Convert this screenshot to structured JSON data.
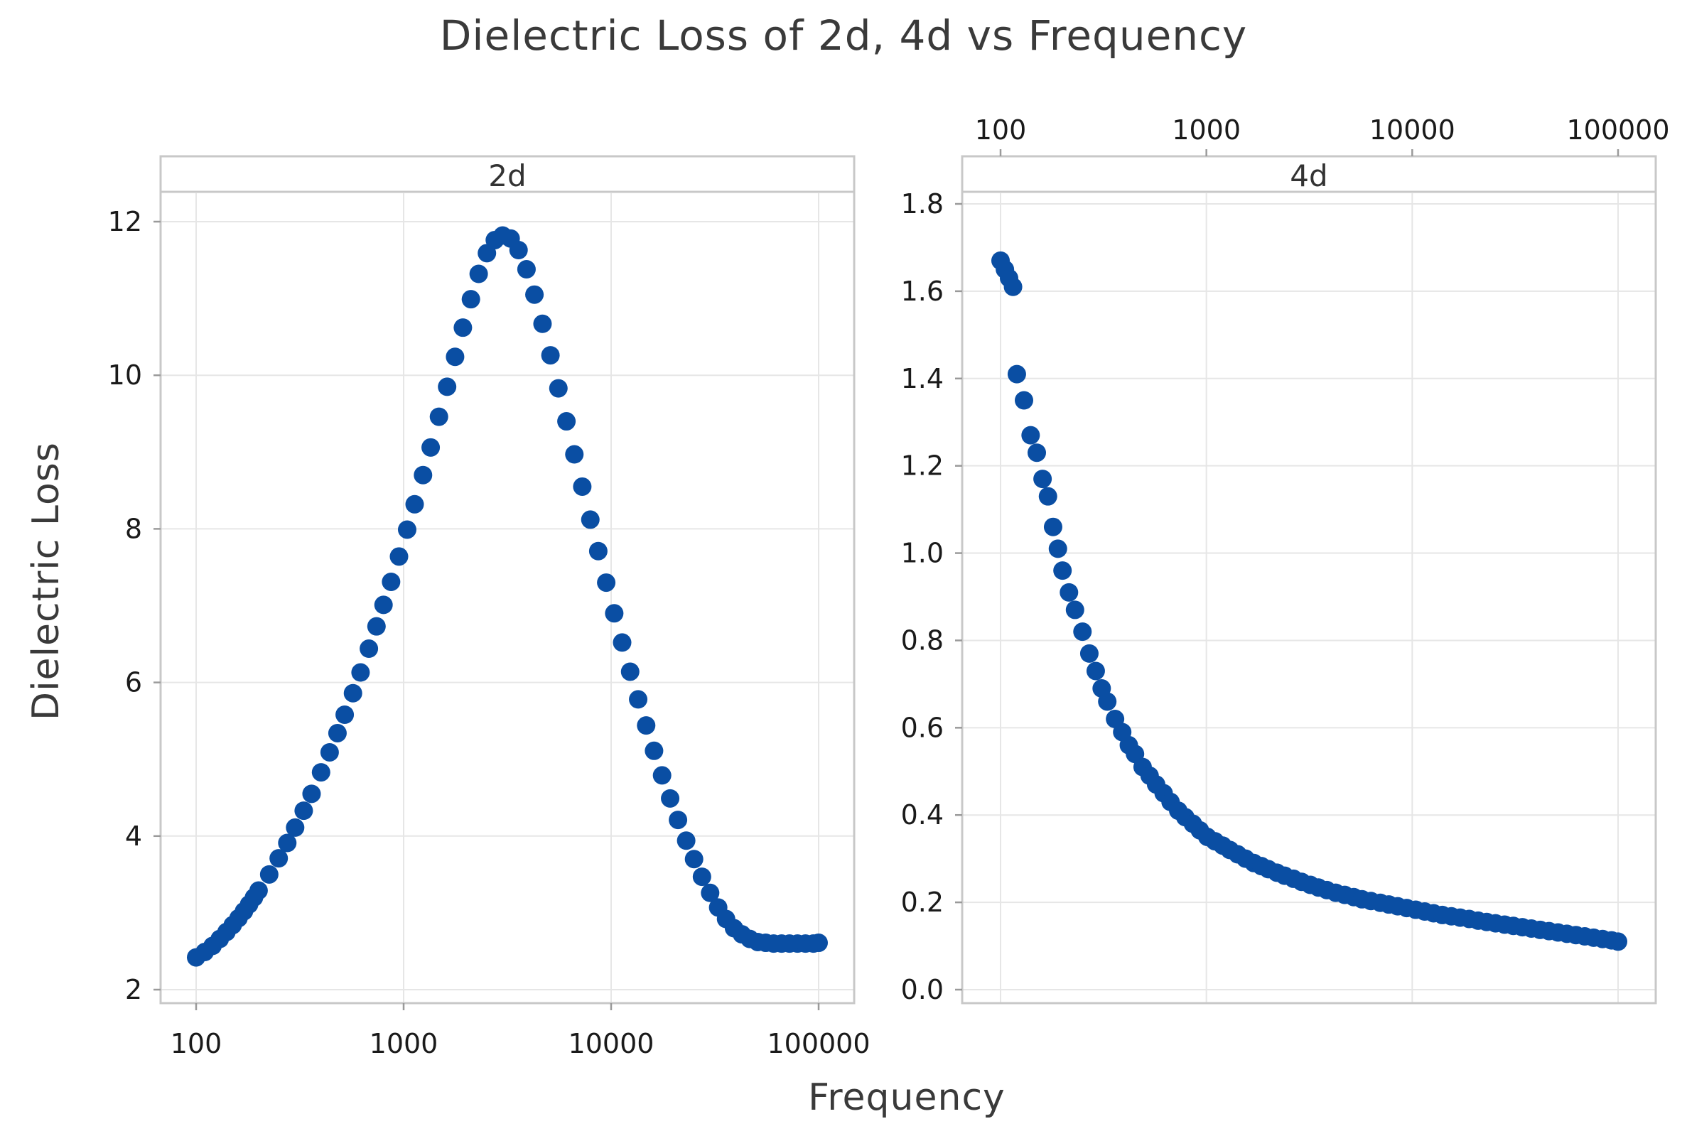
{
  "chart_data": {
    "type": "scatter",
    "title": "Dielectric Loss of 2d, 4d vs Frequency",
    "xlabel": "Frequency",
    "ylabel": "Dielectric Loss",
    "x_scale": "log",
    "marker_color": "#0a4ea3",
    "panels": [
      {
        "name": "2d",
        "xlim": [
          100,
          100000
        ],
        "ylim": [
          2,
          12
        ],
        "x_ticks": [
          "100",
          "1000",
          "10000",
          "100000"
        ],
        "y_ticks": [
          "2",
          "4",
          "6",
          "8",
          "10",
          "12"
        ],
        "x_ticks_position": "bottom",
        "series": [
          {
            "name": "2d",
            "x": [
              100,
              110,
              120,
              130,
              140,
              150,
              160,
              170,
              180,
              190,
              200,
              225,
              250,
              275,
              300,
              330,
              360,
              400,
              440,
              480,
              520,
              570,
              620,
              680,
              740,
              800,
              870,
              950,
              1040,
              1130,
              1240,
              1350,
              1480,
              1620,
              1770,
              1930,
              2110,
              2300,
              2520,
              2750,
              3000,
              3280,
              3580,
              3910,
              4270,
              4670,
              5100,
              5570,
              6090,
              6650,
              7260,
              7940,
              8670,
              9470,
              10350,
              11300,
              12350,
              13500,
              14750,
              16100,
              17600,
              19250,
              21000,
              23000,
              25100,
              27400,
              30000,
              32800,
              35800,
              39100,
              42700,
              46600,
              50900,
              55600,
              60700,
              66300,
              72400,
              79100,
              86400,
              94400,
              100000
            ],
            "y": [
              2.42,
              2.49,
              2.57,
              2.66,
              2.75,
              2.84,
              2.93,
              3.02,
              3.11,
              3.2,
              3.29,
              3.5,
              3.71,
              3.91,
              4.11,
              4.33,
              4.55,
              4.83,
              5.09,
              5.34,
              5.58,
              5.86,
              6.13,
              6.44,
              6.73,
              7.01,
              7.31,
              7.64,
              7.99,
              8.32,
              8.7,
              9.06,
              9.46,
              9.85,
              10.24,
              10.62,
              10.99,
              11.32,
              11.59,
              11.76,
              11.82,
              11.78,
              11.63,
              11.38,
              11.05,
              10.67,
              10.26,
              9.83,
              9.4,
              8.97,
              8.55,
              8.12,
              7.71,
              7.3,
              6.9,
              6.52,
              6.14,
              5.78,
              5.44,
              5.11,
              4.79,
              4.49,
              4.21,
              3.94,
              3.7,
              3.47,
              3.26,
              3.07,
              2.92,
              2.8,
              2.72,
              2.66,
              2.62,
              2.61,
              2.6,
              2.6,
              2.6,
              2.6,
              2.6,
              2.6,
              2.61
            ]
          }
        ]
      },
      {
        "name": "4d",
        "xlim": [
          100,
          100000
        ],
        "ylim": [
          0.0,
          1.8
        ],
        "x_ticks": [
          "100",
          "1000",
          "10000",
          "100000"
        ],
        "y_ticks": [
          "0.0",
          "0.2",
          "0.4",
          "0.6",
          "0.8",
          "1.0",
          "1.2",
          "1.4",
          "1.6",
          "1.8"
        ],
        "x_ticks_position": "top",
        "series": [
          {
            "name": "4d",
            "x": [
              100,
              105,
              110,
              115,
              120,
              130,
              140,
              150,
              160,
              170,
              180,
              190,
              200,
              215,
              230,
              250,
              270,
              290,
              310,
              330,
              360,
              390,
              420,
              450,
              490,
              530,
              570,
              620,
              670,
              730,
              790,
              860,
              930,
              1010,
              1100,
              1200,
              1300,
              1420,
              1550,
              1700,
              1850,
              2000,
              2200,
              2400,
              2650,
              2900,
              3200,
              3500,
              3850,
              4250,
              4700,
              5200,
              5700,
              6300,
              7000,
              7700,
              8500,
              9400,
              10400,
              11500,
              12700,
              14000,
              15500,
              17100,
              18900,
              20900,
              23000,
              25400,
              28100,
              31000,
              34300,
              37900,
              41800,
              46200,
              51100,
              56400,
              62400,
              68900,
              76100,
              84100,
              92900,
              100000
            ],
            "y": [
              1.67,
              1.65,
              1.63,
              1.61,
              1.41,
              1.35,
              1.27,
              1.23,
              1.17,
              1.13,
              1.06,
              1.01,
              0.96,
              0.91,
              0.87,
              0.82,
              0.77,
              0.73,
              0.69,
              0.66,
              0.62,
              0.59,
              0.56,
              0.54,
              0.51,
              0.49,
              0.47,
              0.45,
              0.43,
              0.41,
              0.395,
              0.38,
              0.365,
              0.35,
              0.34,
              0.33,
              0.32,
              0.31,
              0.3,
              0.29,
              0.283,
              0.276,
              0.268,
              0.261,
              0.254,
              0.247,
              0.24,
              0.234,
              0.228,
              0.222,
              0.217,
              0.212,
              0.207,
              0.203,
              0.199,
              0.195,
              0.191,
              0.187,
              0.183,
              0.179,
              0.175,
              0.171,
              0.168,
              0.165,
              0.162,
              0.158,
              0.155,
              0.152,
              0.149,
              0.146,
              0.143,
              0.14,
              0.137,
              0.134,
              0.131,
              0.128,
              0.125,
              0.122,
              0.119,
              0.116,
              0.113,
              0.11
            ]
          }
        ]
      }
    ]
  }
}
